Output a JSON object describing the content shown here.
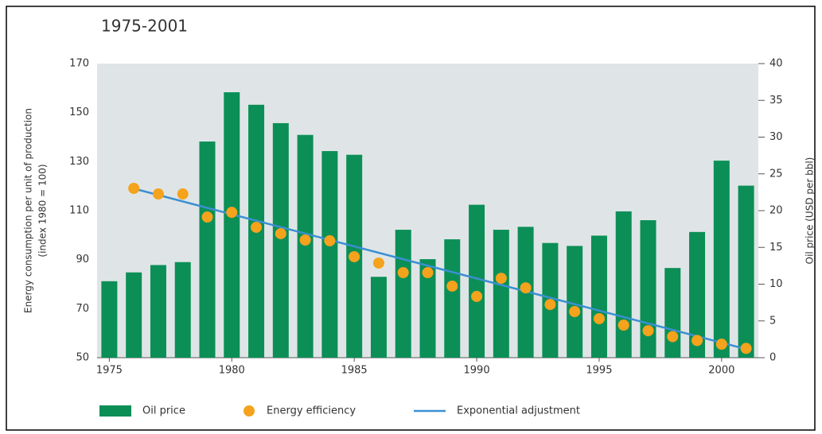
{
  "chart_data": {
    "type": "bar",
    "title": "1975-2001",
    "y_label": [
      "Energy consumption per unit of production",
      "(index 1980 = 100)"
    ],
    "y2_label": "Oil price (USD per bbl)",
    "x": [
      1975,
      1976,
      1977,
      1978,
      1979,
      1980,
      1981,
      1982,
      1983,
      1984,
      1985,
      1986,
      1987,
      1988,
      1989,
      1990,
      1991,
      1992,
      1993,
      1994,
      1995,
      1996,
      1997,
      1998,
      1999,
      2000,
      2001
    ],
    "xlim": [
      1974.5,
      2001.5
    ],
    "xticks": [
      1975,
      1980,
      1985,
      1990,
      1995,
      2000
    ],
    "ylim": [
      50,
      170
    ],
    "yticks": [
      50,
      70,
      90,
      110,
      130,
      150,
      170
    ],
    "y2lim": [
      0,
      40
    ],
    "y2ticks": [
      0,
      5,
      10,
      15,
      20,
      25,
      30,
      35,
      40
    ],
    "series": [
      {
        "name": "Oil price",
        "type": "bar",
        "axis": "y2",
        "color": "#0b8f57",
        "values": [
          10.4,
          11.6,
          12.6,
          13.0,
          29.4,
          36.1,
          34.4,
          31.9,
          30.3,
          28.1,
          27.6,
          11.0,
          17.4,
          13.4,
          16.1,
          20.8,
          17.4,
          17.8,
          15.6,
          15.2,
          16.6,
          19.9,
          18.7,
          12.2,
          17.1,
          26.8,
          23.4
        ]
      },
      {
        "name": "Energy efficiency",
        "type": "scatter",
        "color": "#f5a21c",
        "values": [
          null,
          119.1,
          116.8,
          116.8,
          107.4,
          109.3,
          103.2,
          100.6,
          98.0,
          97.7,
          91.2,
          88.6,
          84.7,
          84.7,
          79.2,
          75.0,
          82.4,
          78.5,
          71.7,
          68.8,
          65.9,
          63.3,
          61.0,
          58.6,
          57.0,
          55.5,
          53.8
        ]
      },
      {
        "name": "Exponential adjustment",
        "type": "line",
        "color": "#3b8fd2",
        "x": [
          1976,
          2001
        ],
        "values": [
          119,
          53.5
        ]
      }
    ]
  }
}
